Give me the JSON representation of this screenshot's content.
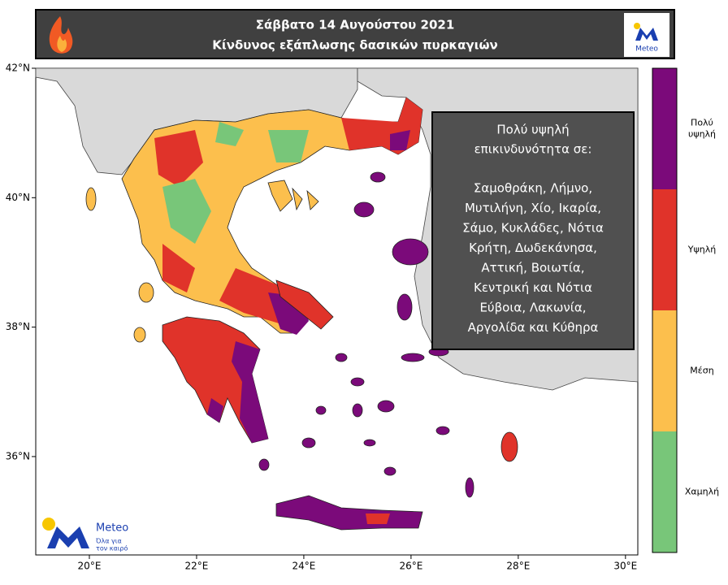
{
  "header": {
    "title": "Σάββατο  14 Αυγούστου 2021",
    "subtitle": "Κίνδυνος εξάπλωσης δασικών πυρκαγιών",
    "logo": "Meteo"
  },
  "map": {
    "xlim": [
      19,
      30.23
    ],
    "ylim": [
      34.48,
      42
    ],
    "xticks": [
      {
        "value": 20,
        "label": "20°E"
      },
      {
        "value": 22,
        "label": "22°E"
      },
      {
        "value": 24,
        "label": "24°E"
      },
      {
        "value": 26,
        "label": "26°E"
      },
      {
        "value": 28,
        "label": "28°E"
      },
      {
        "value": 30,
        "label": "30°E"
      }
    ],
    "yticks": [
      {
        "value": 36,
        "label": "36°N"
      },
      {
        "value": 38,
        "label": "38°N"
      },
      {
        "value": 40,
        "label": "40°N"
      },
      {
        "value": 42,
        "label": "42°N"
      }
    ]
  },
  "info_box": {
    "heading": [
      "Πολύ υψηλή",
      "επικινδυνότητα σε:"
    ],
    "lines": [
      "Σαμοθράκη, Λήμνο,",
      "Μυτιλήνη, Χίο, Ικαρία,",
      "Σάμο, Κυκλάδες, Νότια",
      "Κρήτη, Δωδεκάνησα,",
      "Αττική, Βοιωτία,",
      "Κεντρική και Νότια",
      "Εύβοια, Λακωνία,",
      "Αργολίδα και Κύθηρα"
    ]
  },
  "legend": [
    {
      "label": [
        "Πολύ",
        "υψηλή"
      ],
      "color": "#7b0a7a"
    },
    {
      "label": [
        "Υψηλή"
      ],
      "color": "#e0332a"
    },
    {
      "label": [
        "Μέση"
      ],
      "color": "#fcbf4d"
    },
    {
      "label": [
        "Χαμηλή"
      ],
      "color": "#78c679"
    }
  ],
  "watermark": {
    "name": "Meteo",
    "tagline": [
      "Όλα για",
      "τον καιρό"
    ]
  }
}
